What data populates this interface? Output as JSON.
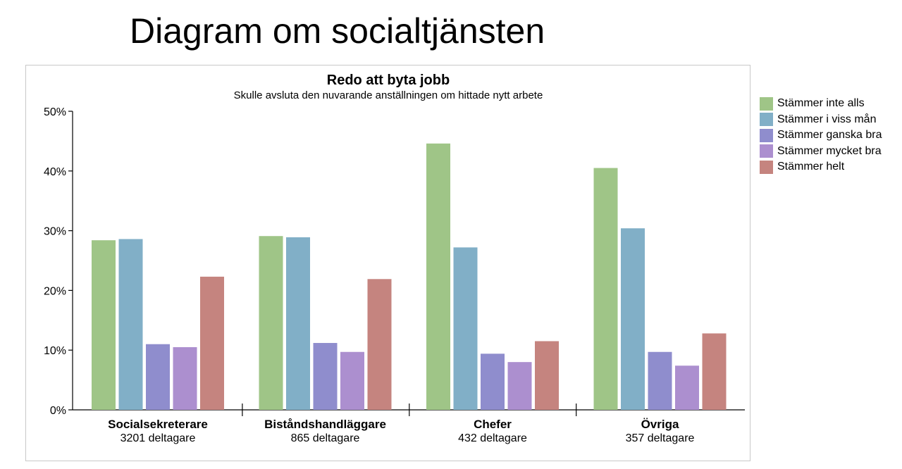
{
  "page": {
    "title": "Diagram om socialtjänsten"
  },
  "chart_data": {
    "type": "bar",
    "title": "Redo att byta jobb",
    "subtitle": "Skulle avsluta den nuvarande anställningen om hittade nytt arbete",
    "categories": [
      "Socialsekreterare",
      "Biståndshandläggare",
      "Chefer",
      "Övriga"
    ],
    "category_sublabels": [
      "3201 deltagare",
      "865 deltagare",
      "432 deltagare",
      "357 deltagare"
    ],
    "ylim": [
      0,
      50
    ],
    "yticks": [
      0,
      10,
      20,
      30,
      40,
      50
    ],
    "ytick_labels": [
      "0%",
      "10%",
      "20%",
      "30%",
      "40%",
      "50%"
    ],
    "grid": false,
    "legend_position": "right",
    "series": [
      {
        "name": "Stämmer inte alls",
        "color": "#9fc587",
        "values": [
          28.4,
          29.1,
          44.6,
          40.5
        ]
      },
      {
        "name": "Stämmer i viss mån",
        "color": "#81afc7",
        "values": [
          28.6,
          28.9,
          27.2,
          30.4
        ]
      },
      {
        "name": "Stämmer ganska bra",
        "color": "#8f8dcd",
        "values": [
          11.0,
          11.2,
          9.4,
          9.7
        ]
      },
      {
        "name": "Stämmer mycket bra",
        "color": "#ac8fcf",
        "values": [
          10.5,
          9.7,
          8.0,
          7.4
        ]
      },
      {
        "name": "Stämmer helt",
        "color": "#c5847f",
        "values": [
          22.3,
          21.9,
          11.5,
          12.8
        ]
      }
    ]
  }
}
